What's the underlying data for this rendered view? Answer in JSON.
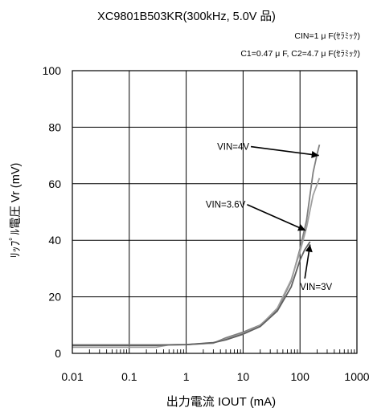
{
  "chart_data": {
    "type": "line",
    "title": "XC9801B503KR(300kHz, 5.0V 品)",
    "subtitle_lines": [
      "CIN=1 μ F(ｾﾗﾐｯｸ)",
      "C1=0.47 μ F, C2=4.7 μ F(ｾﾗﾐｯｸ)"
    ],
    "xlabel": "出力電流 IOUT (mA)",
    "ylabel": "ﾘｯﾌﾟﾙ電圧 Vr (mV)",
    "x_scale": "log",
    "xlim": [
      0.01,
      1000
    ],
    "ylim": [
      0,
      100
    ],
    "x_ticks": [
      0.01,
      0.1,
      1,
      10,
      100,
      1000
    ],
    "x_tick_labels": [
      "0.01",
      "0.1",
      "1",
      "10",
      "100",
      "1000"
    ],
    "y_ticks": [
      0,
      20,
      40,
      60,
      80,
      100
    ],
    "y_tick_labels": [
      "0",
      "20",
      "40",
      "60",
      "80",
      "100"
    ],
    "grid": true,
    "series": [
      {
        "name": "VIN=4V",
        "color": "#808080",
        "points": [
          [
            0.01,
            3.0
          ],
          [
            0.2,
            3.0
          ],
          [
            0.5,
            3.0
          ],
          [
            1,
            3.1
          ],
          [
            3,
            3.6
          ],
          [
            5,
            5.5
          ],
          [
            10,
            7.5
          ],
          [
            20,
            10.0
          ],
          [
            40,
            15.5
          ],
          [
            70,
            25.5
          ],
          [
            100,
            37.0
          ],
          [
            130,
            47.0
          ],
          [
            170,
            64.0
          ],
          [
            200,
            70.5
          ],
          [
            220,
            73.8
          ]
        ]
      },
      {
        "name": "VIN=3.6V",
        "color": "#a0a0a0",
        "points": [
          [
            0.01,
            2.2
          ],
          [
            0.3,
            2.2
          ],
          [
            0.5,
            3.0
          ],
          [
            1,
            3.1
          ],
          [
            3,
            3.7
          ],
          [
            5,
            5.0
          ],
          [
            10,
            7.0
          ],
          [
            20,
            9.8
          ],
          [
            40,
            16.0
          ],
          [
            70,
            26.0
          ],
          [
            100,
            36.0
          ],
          [
            130,
            44.5
          ],
          [
            170,
            56.0
          ],
          [
            220,
            62.0
          ]
        ]
      },
      {
        "name": "VIN=3V",
        "color": "#606060",
        "points": [
          [
            0.01,
            2.8
          ],
          [
            0.3,
            2.8
          ],
          [
            0.5,
            3.0
          ],
          [
            1,
            3.1
          ],
          [
            3,
            3.8
          ],
          [
            5,
            4.8
          ],
          [
            10,
            6.8
          ],
          [
            20,
            9.5
          ],
          [
            40,
            15.0
          ],
          [
            70,
            23.5
          ],
          [
            100,
            33.0
          ],
          [
            120,
            36.5
          ],
          [
            150,
            39.5
          ]
        ]
      }
    ],
    "annotations": [
      {
        "label": "VIN=4V",
        "text_x": 3.5,
        "text_y": 72.0,
        "arrow_x": 215,
        "arrow_y": 70.0
      },
      {
        "label": "VIN=3.6V",
        "text_x": 2.2,
        "text_y": 51.5,
        "arrow_x": 125,
        "arrow_y": 43.5
      },
      {
        "label": "VIN=3V",
        "text_x": 100,
        "text_y": 22.5,
        "arrow_x": 150,
        "arrow_y": 38.5
      }
    ]
  }
}
